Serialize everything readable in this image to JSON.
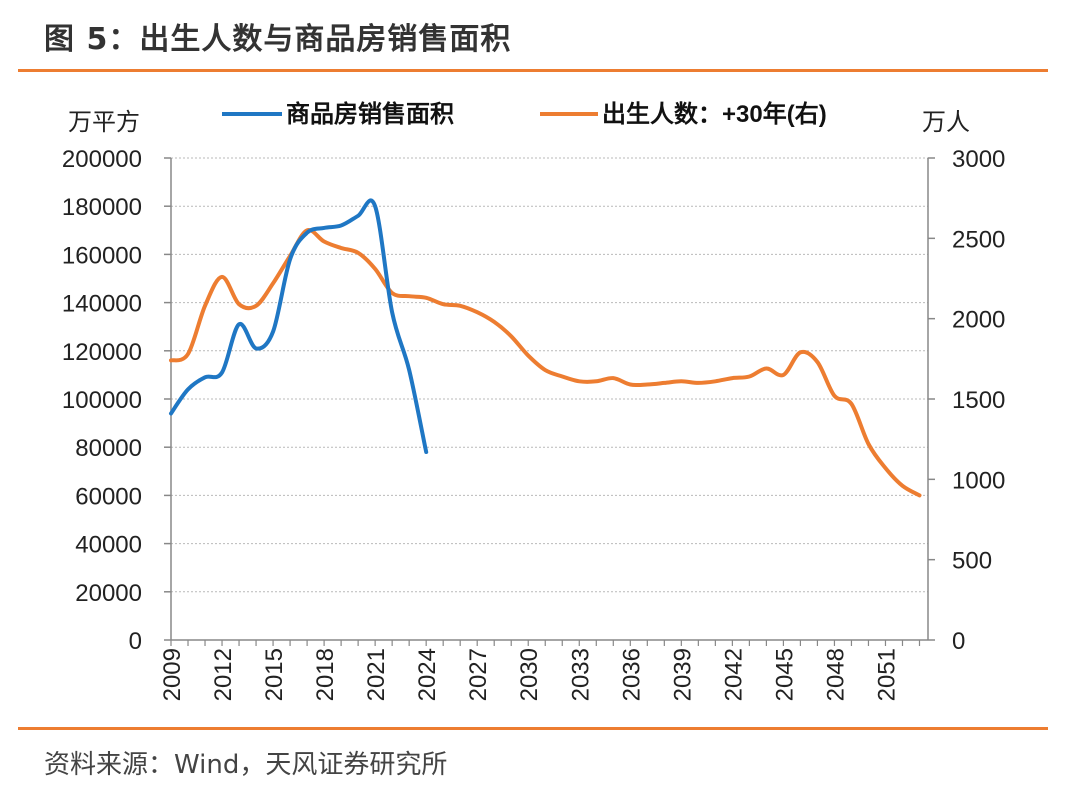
{
  "figure": {
    "title": "图 5：出生人数与商品房销售面积",
    "source": "资料来源：Wind，天风证券研究所"
  },
  "chart_data": {
    "type": "line",
    "y_left_unit": "万平方",
    "y_right_unit": "万人",
    "y_left_ticks": [
      "200000",
      "180000",
      "160000",
      "140000",
      "120000",
      "100000",
      "80000",
      "60000",
      "40000",
      "20000",
      "0"
    ],
    "y_right_ticks": [
      "3000",
      "2500",
      "2000",
      "1500",
      "1000",
      "500",
      "0"
    ],
    "x_ticks": [
      "2009",
      "2012",
      "2015",
      "2018",
      "2021",
      "2024",
      "2027",
      "2030",
      "2033",
      "2036",
      "2039",
      "2042",
      "2045",
      "2048",
      "2051"
    ],
    "ylim_left": [
      0,
      200000
    ],
    "ylim_right": [
      0,
      3000
    ],
    "xlim": [
      2009,
      2053.5
    ],
    "grid": true,
    "legend_position": "top",
    "series": [
      {
        "name": "商品房销售面积",
        "axis": "left",
        "color": "#1F77C4",
        "x": [
          2009,
          2010,
          2011,
          2012,
          2013,
          2014,
          2015,
          2016,
          2017,
          2018,
          2019,
          2020,
          2021,
          2022,
          2023,
          2024
        ],
        "values": [
          94000,
          104000,
          109000,
          111000,
          131000,
          121000,
          128000,
          158000,
          169000,
          171000,
          172000,
          176000,
          180000,
          136000,
          112000,
          78000
        ]
      },
      {
        "name": "出生人数：+30年(右)",
        "axis": "right",
        "color": "#ED7D31",
        "x": [
          2009,
          2010,
          2011,
          2012,
          2013,
          2014,
          2015,
          2016,
          2017,
          2018,
          2019,
          2020,
          2021,
          2022,
          2023,
          2024,
          2025,
          2026,
          2027,
          2028,
          2029,
          2030,
          2031,
          2032,
          2033,
          2034,
          2035,
          2036,
          2037,
          2038,
          2039,
          2040,
          2041,
          2042,
          2043,
          2044,
          2045,
          2046,
          2047,
          2048,
          2049,
          2050,
          2051,
          2052,
          2053
        ],
        "values": [
          1740,
          1780,
          2080,
          2260,
          2090,
          2080,
          2220,
          2390,
          2550,
          2480,
          2440,
          2410,
          2310,
          2160,
          2140,
          2130,
          2090,
          2080,
          2040,
          1980,
          1890,
          1770,
          1680,
          1640,
          1610,
          1610,
          1630,
          1590,
          1590,
          1600,
          1610,
          1600,
          1610,
          1630,
          1640,
          1690,
          1650,
          1790,
          1730,
          1520,
          1470,
          1220,
          1070,
          960,
          900
        ]
      }
    ]
  }
}
